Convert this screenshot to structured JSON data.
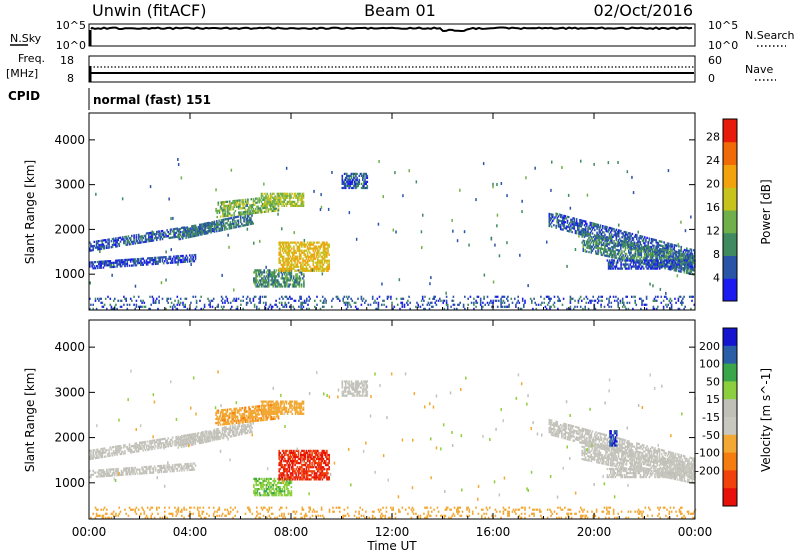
{
  "header": {
    "site": "Unwin (fitACF)",
    "beam": "Beam 01",
    "date": "02/Oct/2016"
  },
  "status_panels": {
    "nsky_label": "N.Sky",
    "nsky_ticks": [
      "10^5",
      "10^0"
    ],
    "nsearch_label": "N.Search",
    "nsearch_ticks": [
      "10^5",
      "10^0"
    ],
    "freq_label_1": "Freq.",
    "freq_label_2": "[MHz]",
    "freq_ticks": [
      "18",
      "8"
    ],
    "nave_label": "Nave",
    "nave_ticks": [
      "60",
      "0"
    ],
    "cpid_label": "CPID",
    "cpid_value": "normal (fast) 151"
  },
  "colors": {
    "power_scale": [
      "#1b1bf0",
      "#2a54a8",
      "#3f8a5e",
      "#6fb04a",
      "#c8c21c",
      "#f2a20c",
      "#f06a08",
      "#e81a0a"
    ],
    "velocity_scale": [
      "#e8110a",
      "#f0420a",
      "#f57c0e",
      "#f2a832",
      "#c8c8c0",
      "#c0c0b8",
      "#8ccf3e",
      "#3aa64a",
      "#2a5fa8",
      "#1515d0"
    ]
  },
  "chart_data": [
    {
      "type": "heatmap",
      "title": "",
      "xlabel": "Time UT",
      "ylabel": "Slant Range [km]",
      "x_ticks": [
        "00:00",
        "04:00",
        "08:00",
        "12:00",
        "16:00",
        "20:00",
        "00:00"
      ],
      "x_range_hours": [
        0,
        24
      ],
      "y_ticks": [
        "1000",
        "2000",
        "3000",
        "4000"
      ],
      "ylim": [
        200,
        4600
      ],
      "colorbar": {
        "label": "Power [dB]",
        "ticks": [
          "4",
          "8",
          "12",
          "16",
          "20",
          "24",
          "28"
        ],
        "range": [
          0,
          31
        ]
      },
      "echo_regions": [
        {
          "t0": 0.0,
          "t1": 5.0,
          "r0": 1550,
          "r1": 1750,
          "slope": 90,
          "value": 6
        },
        {
          "t0": 0.0,
          "t1": 4.2,
          "r0": 1150,
          "r1": 1300,
          "slope": 40,
          "value": 5
        },
        {
          "t0": 3.5,
          "t1": 6.5,
          "r0": 1800,
          "r1": 2050,
          "slope": 120,
          "value": 8
        },
        {
          "t0": 5.0,
          "t1": 7.5,
          "r0": 2300,
          "r1": 2650,
          "slope": 60,
          "value": 14
        },
        {
          "t0": 6.8,
          "t1": 8.5,
          "r0": 2550,
          "r1": 2850,
          "slope": 0,
          "value": 16
        },
        {
          "t0": 6.5,
          "t1": 8.5,
          "r0": 750,
          "r1": 1150,
          "slope": 0,
          "value": 10
        },
        {
          "t0": 7.5,
          "t1": 9.5,
          "r0": 1100,
          "r1": 1750,
          "slope": 0,
          "value": 20
        },
        {
          "t0": 10.0,
          "t1": 11.0,
          "r0": 2950,
          "r1": 3300,
          "slope": 0,
          "value": 6
        },
        {
          "t0": 18.2,
          "t1": 24.0,
          "r0": 2100,
          "r1": 2450,
          "slope": -150,
          "value": 6
        },
        {
          "t0": 19.5,
          "t1": 24.0,
          "r0": 1550,
          "r1": 2000,
          "slope": -120,
          "value": 9
        },
        {
          "t0": 20.5,
          "t1": 24.0,
          "r0": 1150,
          "r1": 1350,
          "slope": 0,
          "value": 5
        },
        {
          "t0": 0.0,
          "t1": 24.0,
          "r0": 250,
          "r1": 550,
          "slope": 0,
          "value": 6
        }
      ]
    },
    {
      "type": "heatmap",
      "title": "",
      "xlabel": "Time UT",
      "ylabel": "Slant Range [km]",
      "x_ticks": [
        "00:00",
        "04:00",
        "08:00",
        "12:00",
        "16:00",
        "20:00",
        "00:00"
      ],
      "x_range_hours": [
        0,
        24
      ],
      "y_ticks": [
        "1000",
        "2000",
        "3000",
        "4000"
      ],
      "ylim": [
        200,
        4600
      ],
      "colorbar": {
        "label": "Velocity [m s^-1]",
        "ticks": [
          "200",
          "100",
          "50",
          "15",
          "-15",
          "-50",
          "-100",
          "-200"
        ]
      },
      "echo_regions": [
        {
          "t0": 0.0,
          "t1": 5.0,
          "r0": 1550,
          "r1": 1750,
          "slope": 90,
          "value": 0
        },
        {
          "t0": 0.0,
          "t1": 4.2,
          "r0": 1150,
          "r1": 1300,
          "slope": 40,
          "value": 0
        },
        {
          "t0": 3.5,
          "t1": 6.5,
          "r0": 1800,
          "r1": 2050,
          "slope": 120,
          "value": 0
        },
        {
          "t0": 5.0,
          "t1": 7.5,
          "r0": 2300,
          "r1": 2650,
          "slope": 60,
          "value": -40
        },
        {
          "t0": 6.8,
          "t1": 8.5,
          "r0": 2550,
          "r1": 2850,
          "slope": 0,
          "value": -30
        },
        {
          "t0": 6.5,
          "t1": 8.0,
          "r0": 750,
          "r1": 1150,
          "slope": 0,
          "value": 40
        },
        {
          "t0": 7.5,
          "t1": 9.5,
          "r0": 1100,
          "r1": 1750,
          "slope": 0,
          "value": -200
        },
        {
          "t0": 10.0,
          "t1": 11.0,
          "r0": 2950,
          "r1": 3300,
          "slope": 0,
          "value": 0
        },
        {
          "t0": 18.2,
          "t1": 24.0,
          "r0": 2100,
          "r1": 2450,
          "slope": -150,
          "value": 0
        },
        {
          "t0": 19.5,
          "t1": 24.0,
          "r0": 1550,
          "r1": 2000,
          "slope": -120,
          "value": 0
        },
        {
          "t0": 20.6,
          "t1": 20.9,
          "r0": 1850,
          "r1": 2200,
          "slope": 0,
          "value": 200
        },
        {
          "t0": 20.5,
          "t1": 24.0,
          "r0": 1150,
          "r1": 1350,
          "slope": 0,
          "value": 0
        },
        {
          "t0": 0.0,
          "t1": 24.0,
          "r0": 250,
          "r1": 500,
          "slope": 0,
          "value": -30
        }
      ]
    }
  ]
}
